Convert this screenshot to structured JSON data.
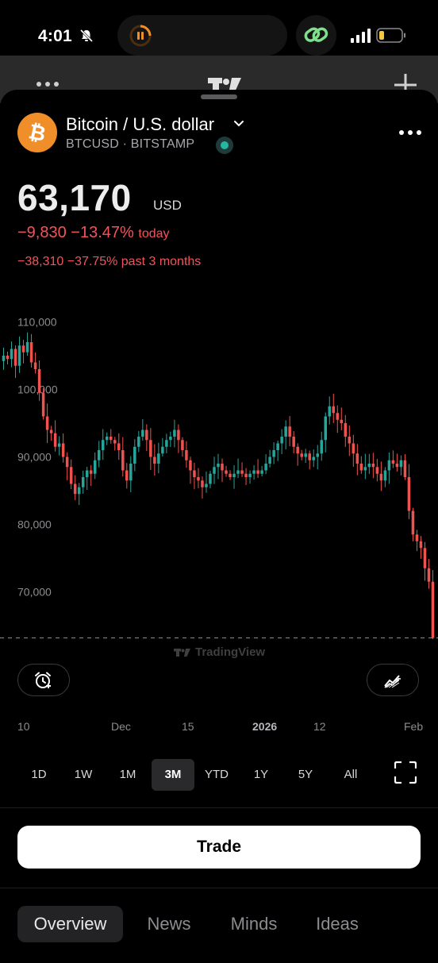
{
  "status_bar": {
    "time": "4:01"
  },
  "instrument": {
    "title": "Bitcoin / U.S. dollar",
    "subtitle": "BTCUSD · BITSTAMP",
    "price": "63,170",
    "currency": "USD",
    "change_today_abs": "−9,830",
    "change_today_pct": "−13.47%",
    "change_today_label": "today",
    "change_period": "−38,310 −37.75% past 3 months"
  },
  "colors": {
    "up": "#26a69a",
    "down": "#ef5350",
    "accent_orange": "#f08f2a"
  },
  "watermark": "TradingView",
  "x_axis": [
    "10",
    "Dec",
    "15",
    "2026",
    "12",
    "Feb"
  ],
  "ranges": [
    "1D",
    "1W",
    "1M",
    "3M",
    "YTD",
    "1Y",
    "5Y",
    "All"
  ],
  "active_range": "3M",
  "trade_label": "Trade",
  "tabs": [
    "Overview",
    "News",
    "Minds",
    "Ideas"
  ],
  "chart_data": {
    "type": "candlestick",
    "ylim": [
      63000,
      113000
    ],
    "yticks": [
      "110,000",
      "100,000",
      "90,000",
      "80,000",
      "70,000"
    ],
    "ytick_values": [
      110000,
      100000,
      90000,
      80000,
      70000
    ],
    "last_price": 63170,
    "closes": [
      105000,
      104500,
      106000,
      103500,
      106500,
      105500,
      107000,
      104000,
      103000,
      99500,
      96000,
      94000,
      93500,
      91500,
      92000,
      90000,
      88500,
      86000,
      84500,
      85500,
      87000,
      88000,
      87500,
      89500,
      91000,
      92500,
      93000,
      92500,
      92000,
      91000,
      88000,
      86500,
      89000,
      91500,
      93000,
      94000,
      92500,
      90000,
      89000,
      90500,
      91500,
      92500,
      93000,
      94000,
      92500,
      91000,
      89500,
      88000,
      87000,
      86500,
      85500,
      86000,
      87500,
      88500,
      89000,
      88000,
      87500,
      87000,
      87500,
      88000,
      87500,
      87000,
      87500,
      88000,
      87500,
      88000,
      89000,
      90000,
      91000,
      92000,
      93000,
      94500,
      93000,
      91500,
      90500,
      90000,
      90500,
      89500,
      90000,
      90500,
      92500,
      96000,
      97500,
      96500,
      95500,
      95000,
      93000,
      92000,
      90500,
      89000,
      88000,
      88500,
      89000,
      88500,
      87500,
      86500,
      88000,
      89500,
      89000,
      88500,
      89500,
      87000,
      82000,
      78500,
      77500,
      76500,
      73500,
      71500,
      63170
    ]
  }
}
